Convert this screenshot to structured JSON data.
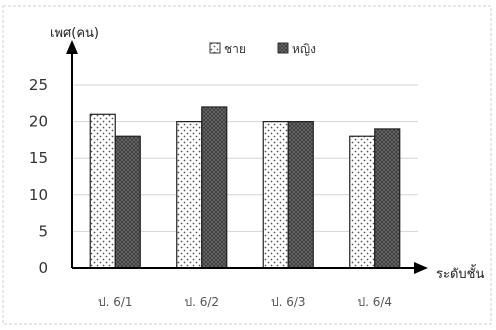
{
  "chart_data": {
    "type": "bar",
    "ylabel": "เพศ(คน)",
    "xlabel": "ระดับชั้น",
    "categories": [
      "ป. 6/1",
      "ป. 6/2",
      "ป. 6/3",
      "ป. 6/4"
    ],
    "series": [
      {
        "name": "ชาย",
        "values": [
          21,
          20,
          20,
          18
        ],
        "pattern": "dotted",
        "color": "#ffffff"
      },
      {
        "name": "หญิง",
        "values": [
          18,
          22,
          20,
          19
        ],
        "pattern": "crosshatch",
        "color": "#555555"
      }
    ],
    "yticks": [
      0,
      5,
      10,
      15,
      20,
      25
    ],
    "ylim": [
      0,
      25
    ],
    "grid": true,
    "legend_position": "top-center"
  }
}
